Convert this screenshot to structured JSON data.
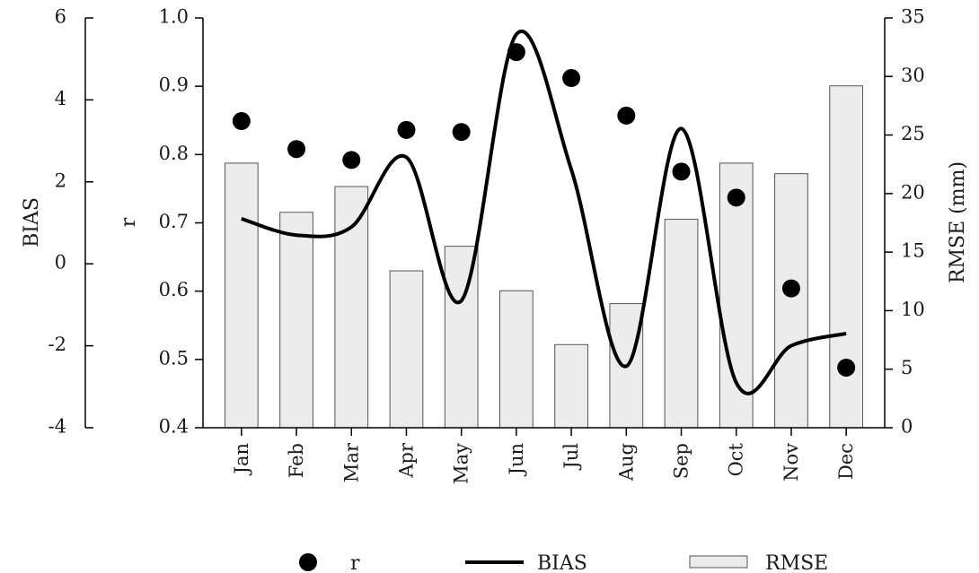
{
  "chart_data": {
    "type": "bar",
    "categories": [
      "Jan",
      "Feb",
      "Mar",
      "Apr",
      "May",
      "Jun",
      "Jul",
      "Aug",
      "Sep",
      "Oct",
      "Nov",
      "Dec"
    ],
    "series": [
      {
        "name": "RMSE",
        "type": "bar",
        "axis": "RMSE (mm)",
        "color": "#ececec",
        "values": [
          22.6,
          18.4,
          20.6,
          13.4,
          15.5,
          11.7,
          7.1,
          10.6,
          17.8,
          22.6,
          21.7,
          29.2
        ]
      },
      {
        "name": "BIAS",
        "type": "line",
        "axis": "BIAS",
        "color": "#000000",
        "values": [
          1.1,
          0.7,
          0.9,
          2.6,
          -0.9,
          5.6,
          2.3,
          -2.5,
          3.3,
          -2.9,
          -2.0,
          -1.7
        ]
      },
      {
        "name": "r",
        "type": "scatter",
        "axis": "r",
        "color": "#000000",
        "values": [
          0.849,
          0.808,
          0.792,
          0.836,
          0.833,
          0.95,
          0.912,
          0.857,
          0.775,
          0.737,
          0.604,
          0.488
        ]
      }
    ],
    "axes": {
      "bias": {
        "label": "BIAS",
        "min": -4,
        "max": 6,
        "ticks": [
          -4,
          -2,
          0,
          2,
          4,
          6
        ]
      },
      "r": {
        "label": "r",
        "min": 0.4,
        "max": 1.0,
        "ticks": [
          "0.4",
          "0.5",
          "0.6",
          "0.7",
          "0.8",
          "0.9",
          "1.0"
        ]
      },
      "rmse": {
        "label": "RMSE (mm)",
        "min": 0,
        "max": 35,
        "ticks": [
          0,
          5,
          10,
          15,
          20,
          25,
          30,
          35
        ]
      }
    },
    "grid": false,
    "legend": {
      "placement": "bottom",
      "entries": [
        "r",
        "BIAS",
        "RMSE"
      ]
    }
  }
}
